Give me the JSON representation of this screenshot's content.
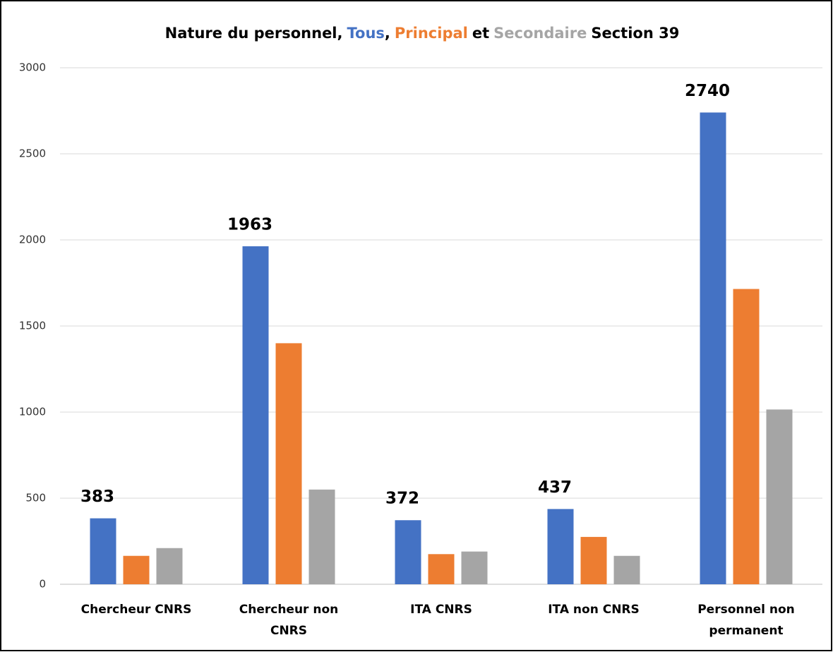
{
  "chart_data": {
    "type": "bar",
    "title_parts": [
      "Nature du personnel,",
      ",",
      "et",
      "Section 39"
    ],
    "categories": [
      "Chercheur CNRS",
      "Chercheur non CNRS",
      "ITA CNRS",
      "ITA non CNRS",
      "Personnel non permanent"
    ],
    "series": [
      {
        "name": "Tous",
        "color": "#4472c4",
        "values": [
          383,
          1963,
          372,
          437,
          2740
        ]
      },
      {
        "name": "Principal",
        "color": "#ed7d31",
        "values": [
          165,
          1400,
          175,
          275,
          1715
        ]
      },
      {
        "name": "Secondaire",
        "color": "#a5a5a5",
        "values": [
          210,
          550,
          190,
          165,
          1015
        ]
      }
    ],
    "ylim": [
      0,
      3000
    ],
    "yticks": [
      0,
      500,
      1000,
      1500,
      2000,
      2500,
      3000
    ],
    "grid": true
  }
}
